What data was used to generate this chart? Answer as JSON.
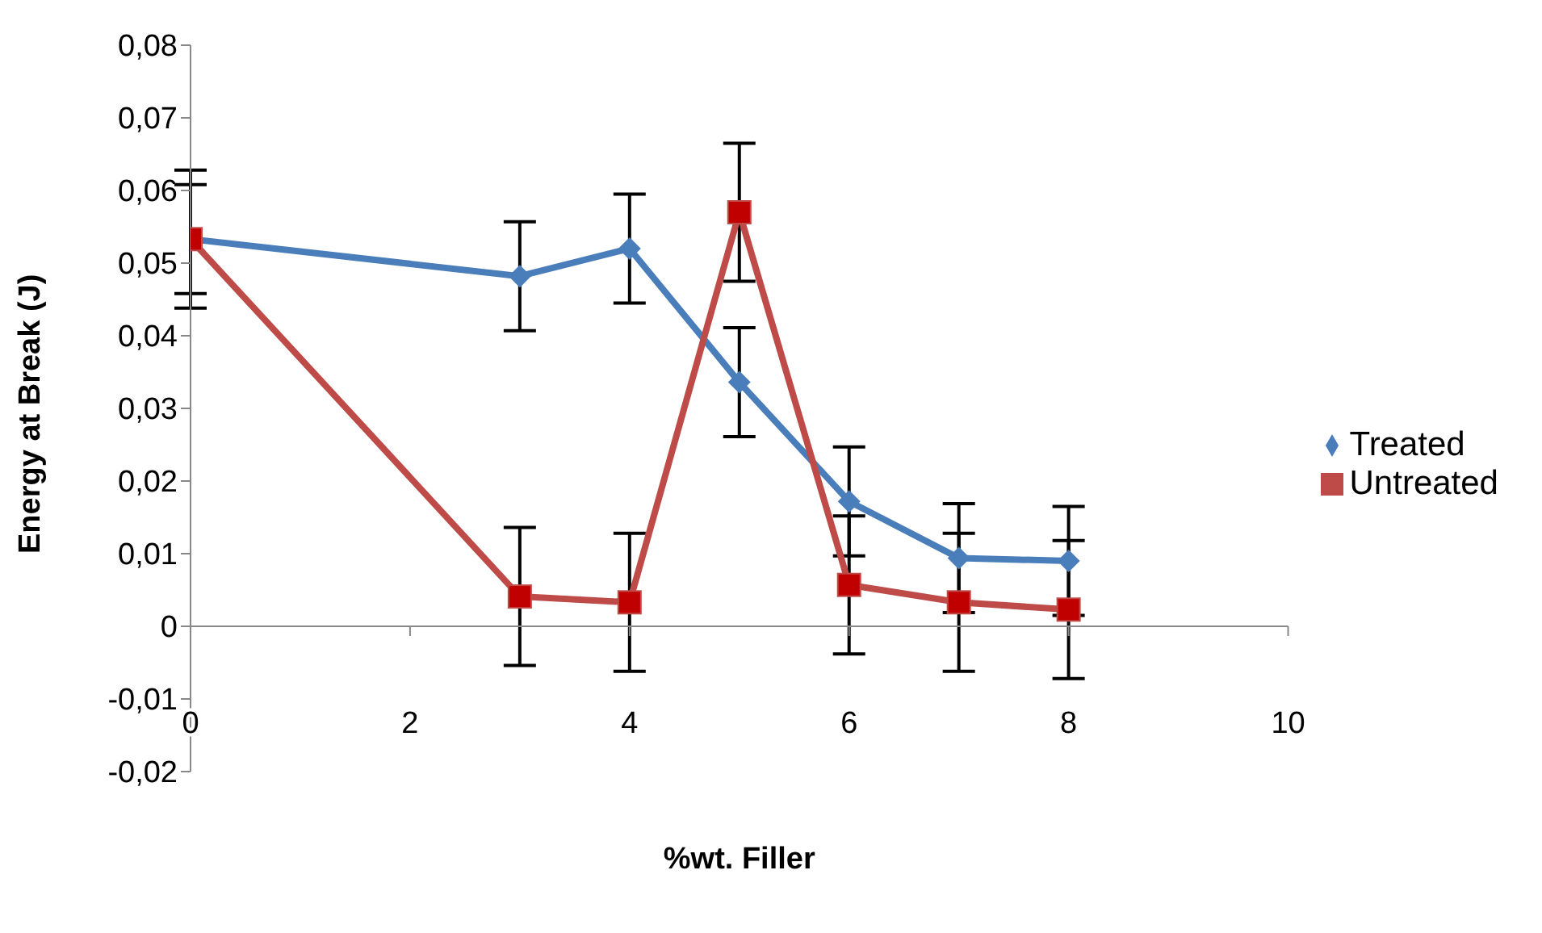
{
  "chart_data": {
    "type": "line",
    "xlabel": "%wt. Filler",
    "ylabel": "Energy at Break (J)",
    "x": [
      0,
      3,
      4,
      5,
      6,
      7,
      8
    ],
    "series": [
      {
        "name": "Treated",
        "color": "#4a7ebb",
        "marker": "diamond",
        "values": [
          0.0533,
          0.0482,
          0.052,
          0.0336,
          0.0172,
          0.0094,
          0.009
        ],
        "errors": [
          0.0075,
          0.0075,
          0.0075,
          0.0075,
          0.0075,
          0.0075,
          0.0075
        ]
      },
      {
        "name": "Untreated",
        "color": "#be4b48",
        "marker": "square",
        "values": [
          0.0533,
          0.0041,
          0.0033,
          0.057,
          0.0057,
          0.0033,
          0.0023
        ],
        "errors": [
          0.0095,
          0.0095,
          0.0095,
          0.0095,
          0.0095,
          0.0095,
          0.0095
        ]
      }
    ],
    "xlim": [
      0,
      10
    ],
    "xticks": [
      0,
      2,
      4,
      6,
      8,
      10
    ],
    "ylim": [
      -0.02,
      0.08
    ],
    "yticks": [
      {
        "value": -0.02,
        "label": "-0,02"
      },
      {
        "value": -0.01,
        "label": "-0,01"
      },
      {
        "value": 0,
        "label": "0"
      },
      {
        "value": 0.01,
        "label": "0,01"
      },
      {
        "value": 0.02,
        "label": "0,02"
      },
      {
        "value": 0.03,
        "label": "0,03"
      },
      {
        "value": 0.04,
        "label": "0,04"
      },
      {
        "value": 0.05,
        "label": "0,05"
      },
      {
        "value": 0.06,
        "label": "0,06"
      },
      {
        "value": 0.07,
        "label": "0,07"
      },
      {
        "value": 0.08,
        "label": "0,08"
      }
    ],
    "legend": "right",
    "line_style": "solid"
  }
}
